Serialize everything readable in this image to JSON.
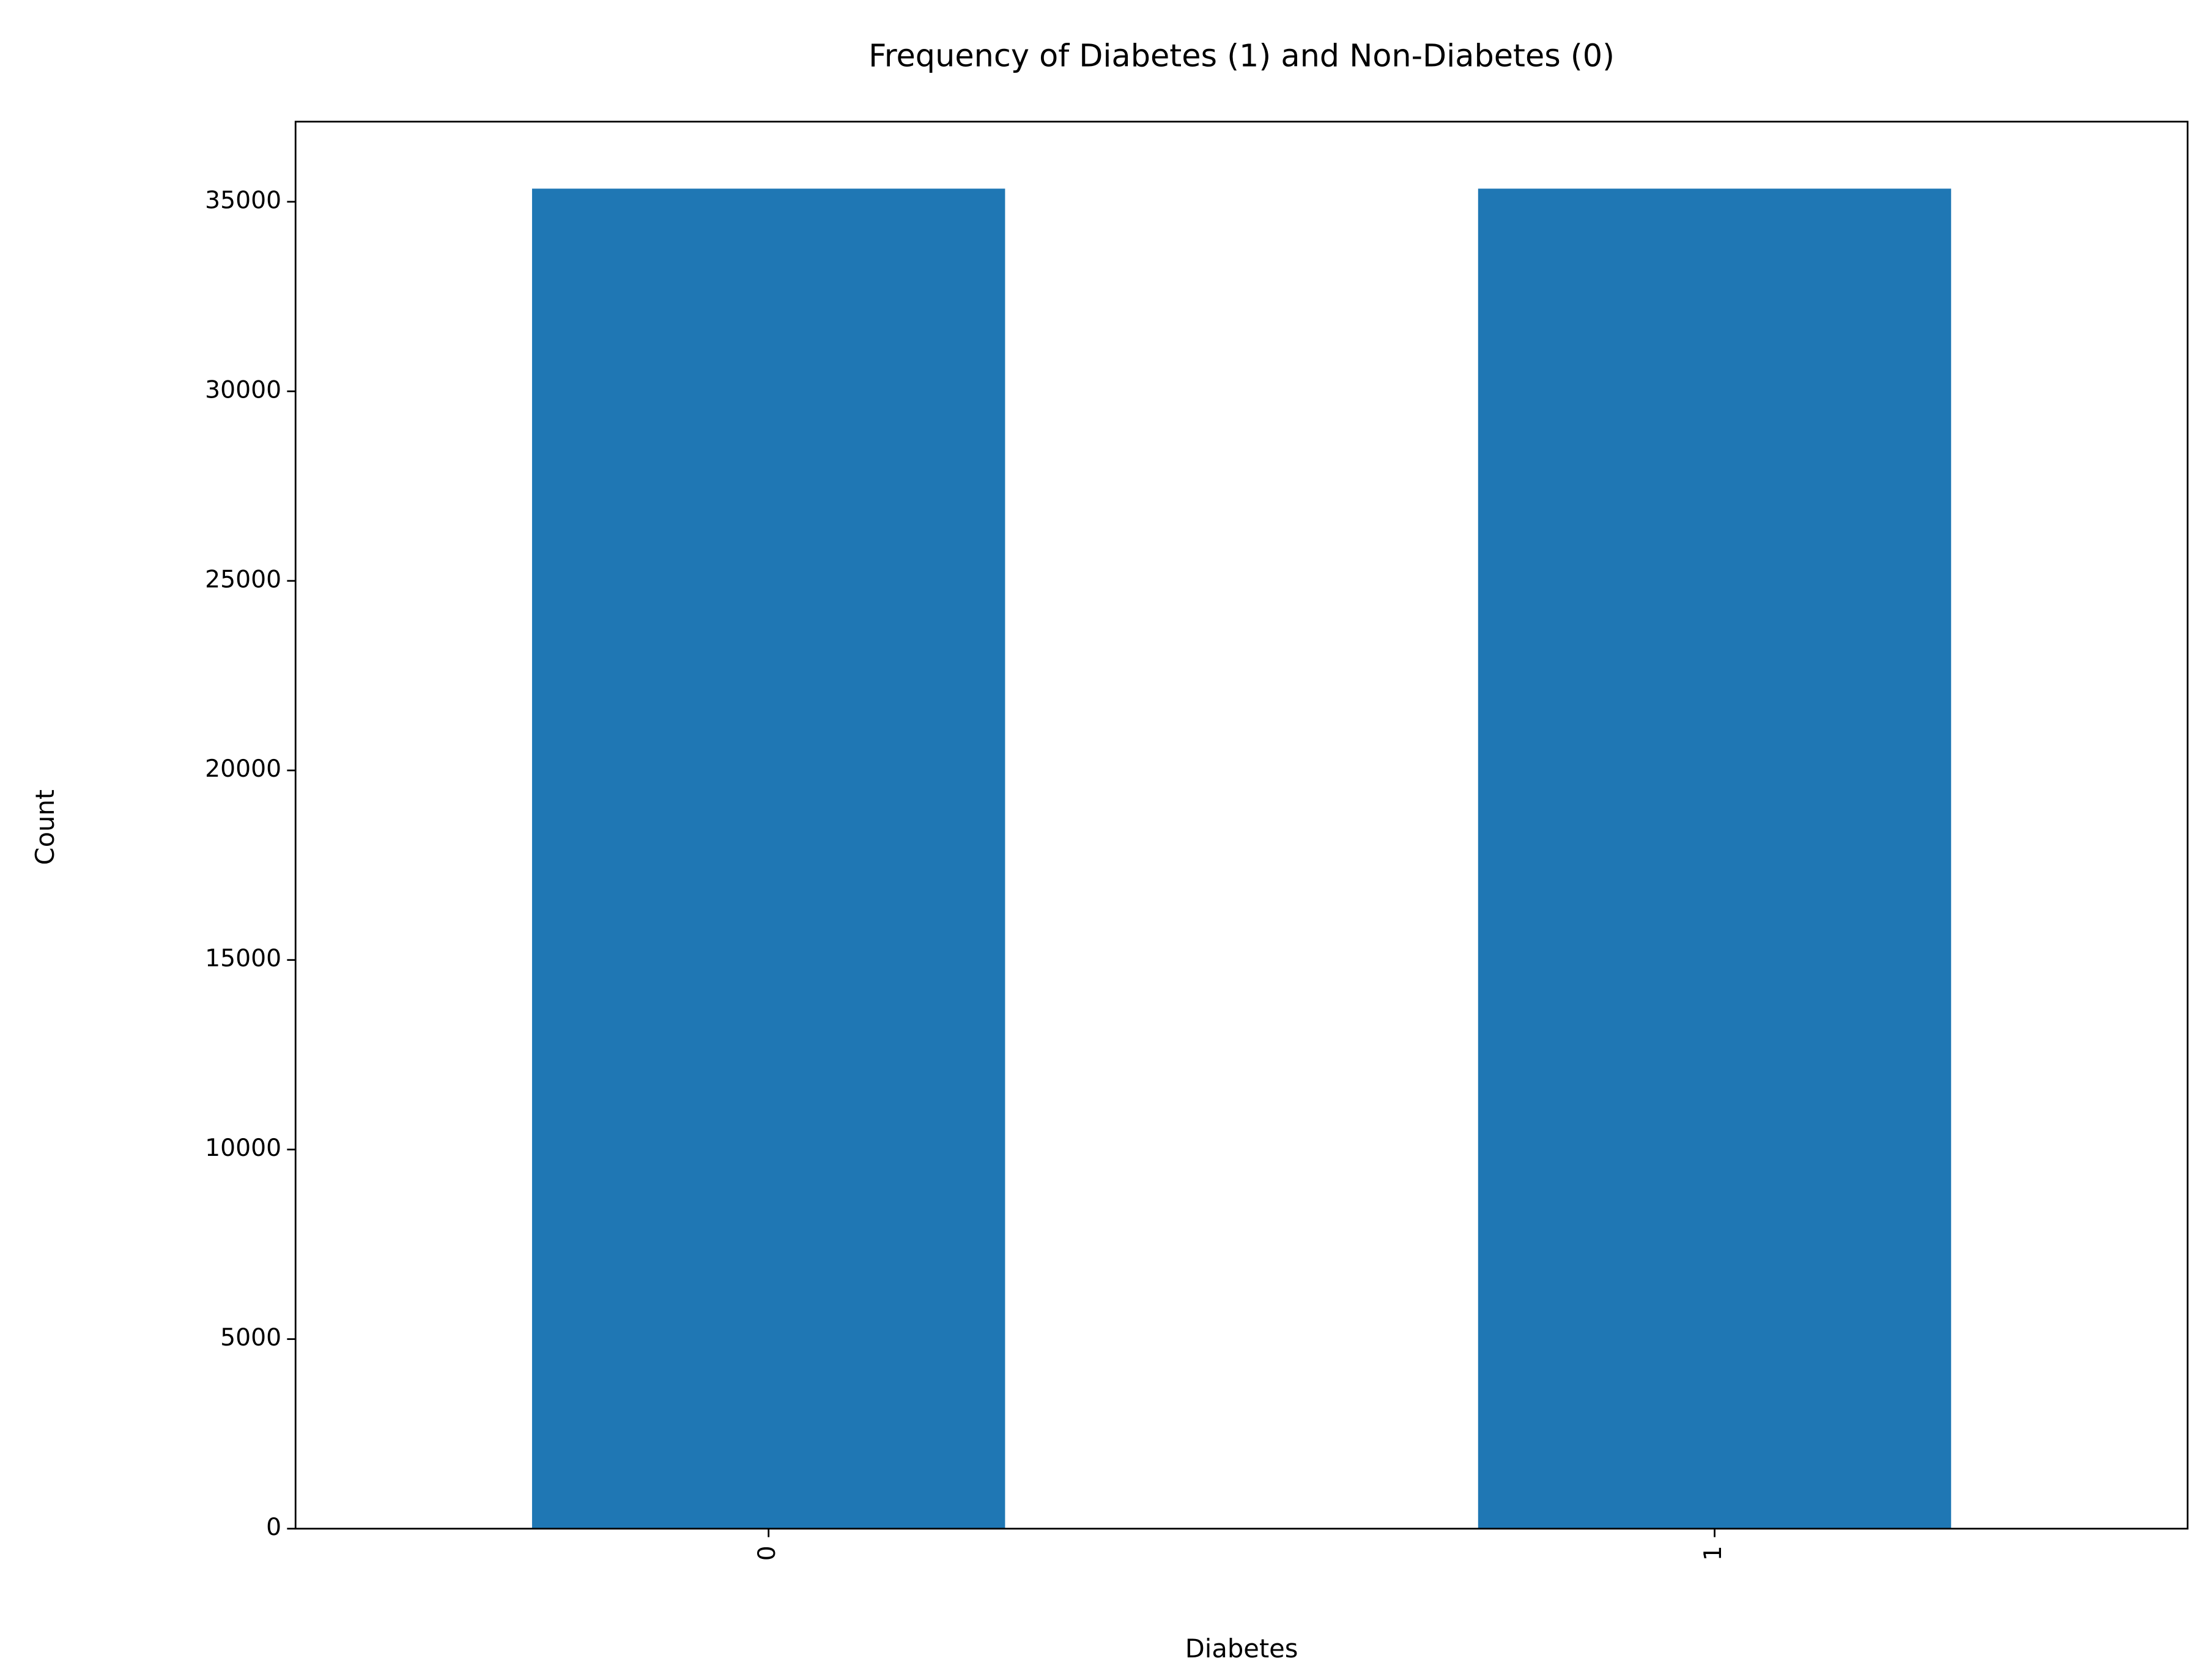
{
  "chart_data": {
    "type": "bar",
    "title": "Frequency of Diabetes (1) and Non-Diabetes (0)",
    "x_label": "Diabetes",
    "y_label": "Count",
    "categories": [
      "0",
      "1"
    ],
    "values": [
      35346,
      35346
    ],
    "color": "#1f77b4",
    "ylim": [
      0,
      37113
    ],
    "yticks": [
      0,
      5000,
      10000,
      15000,
      20000,
      25000,
      30000,
      35000
    ],
    "grid": false
  }
}
